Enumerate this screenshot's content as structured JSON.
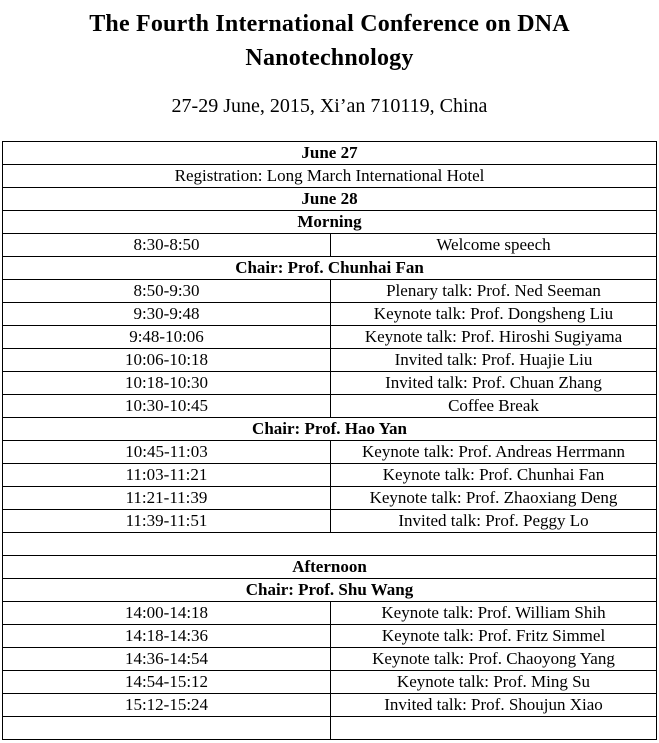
{
  "header": {
    "title": "The Fourth International Conference on DNA Nanotechnology",
    "subtitle": "27-29 June, 2015, Xi’an 710119, China"
  },
  "schedule": {
    "rows": [
      {
        "type": "span",
        "bold": true,
        "text": "June 27"
      },
      {
        "type": "span",
        "bold": false,
        "text": "Registration: Long March International Hotel"
      },
      {
        "type": "span",
        "bold": true,
        "text": "June 28"
      },
      {
        "type": "span",
        "bold": true,
        "text": "Morning"
      },
      {
        "type": "cols",
        "time": "8:30-8:50",
        "event": "Welcome speech"
      },
      {
        "type": "span",
        "bold": true,
        "text": "Chair: Prof. Chunhai Fan"
      },
      {
        "type": "cols",
        "time": "8:50-9:30",
        "event": "Plenary talk: Prof. Ned Seeman"
      },
      {
        "type": "cols",
        "time": "9:30-9:48",
        "event": "Keynote talk: Prof. Dongsheng Liu"
      },
      {
        "type": "cols",
        "time": "9:48-10:06",
        "event": "Keynote talk: Prof. Hiroshi Sugiyama"
      },
      {
        "type": "cols",
        "time": "10:06-10:18",
        "event": "Invited talk: Prof. Huajie Liu"
      },
      {
        "type": "cols",
        "time": "10:18-10:30",
        "event": "Invited talk: Prof. Chuan Zhang"
      },
      {
        "type": "cols",
        "time": "10:30-10:45",
        "event": "Coffee Break"
      },
      {
        "type": "span",
        "bold": true,
        "text": "Chair: Prof. Hao Yan"
      },
      {
        "type": "cols",
        "time": "10:45-11:03",
        "event": "Keynote talk: Prof. Andreas Herrmann"
      },
      {
        "type": "cols",
        "time": "11:03-11:21",
        "event": "Keynote talk: Prof. Chunhai Fan"
      },
      {
        "type": "cols",
        "time": "11:21-11:39",
        "event": "Keynote talk: Prof. Zhaoxiang Deng"
      },
      {
        "type": "cols",
        "time": "11:39-11:51",
        "event": "Invited talk: Prof. Peggy Lo"
      },
      {
        "type": "span",
        "bold": false,
        "text": ""
      },
      {
        "type": "span",
        "bold": true,
        "text": "Afternoon"
      },
      {
        "type": "span",
        "bold": true,
        "text": "Chair: Prof. Shu Wang"
      },
      {
        "type": "cols",
        "time": "14:00-14:18",
        "event": "Keynote talk: Prof. William Shih"
      },
      {
        "type": "cols",
        "time": "14:18-14:36",
        "event": "Keynote talk: Prof. Fritz Simmel"
      },
      {
        "type": "cols",
        "time": "14:36-14:54",
        "event": "Keynote talk: Prof. Chaoyong Yang"
      },
      {
        "type": "cols",
        "time": "14:54-15:12",
        "event": "Keynote talk: Prof. Ming Su"
      },
      {
        "type": "cols",
        "time": "15:12-15:24",
        "event": "Invited talk: Prof. Shoujun Xiao"
      },
      {
        "type": "cols",
        "time": "",
        "event": ""
      }
    ]
  },
  "colors": {
    "text": "#000000",
    "background": "#ffffff",
    "table_border": "#000000"
  }
}
